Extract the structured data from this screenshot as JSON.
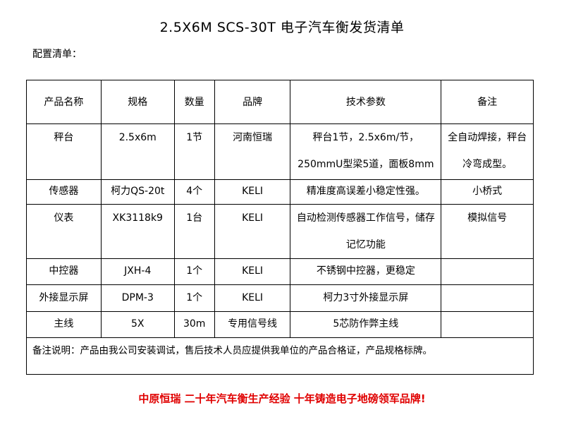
{
  "title": "2.5X6M SCS-30T 电子汽车衡发货清单",
  "subtitle": "配置清单：",
  "headers": [
    "产品名称",
    "规格",
    "数量",
    "品牌",
    "技术参数",
    "备注"
  ],
  "rows": [
    [
      "秤台",
      "2.5x6m",
      "1节",
      "河南恒瑞",
      "秤台1节，2.5x6m/节，250mmU型梁5道，面板8mm",
      "全自动焊接，秤台冷弯成型。"
    ],
    [
      "传感器",
      "柯力QS-20t",
      "4个",
      "KELI",
      "精准度高误差小稳定性强。",
      "小桥式"
    ],
    [
      "仪表",
      "XK3118k9",
      "1台",
      "KELI",
      "自动检测传感器工作信号，储存记忆功能",
      "模拟信号"
    ],
    [
      "中控器",
      "JXH-4",
      "1个",
      "KELI",
      "不锈钢中控器，更稳定",
      ""
    ],
    [
      "外接显示屏",
      "DPM-3",
      "1个",
      "KELI",
      "柯力3寸外接显示屏",
      ""
    ],
    [
      "主线",
      "5X",
      "30m",
      "专用信号线",
      "5芯防作弊主线",
      ""
    ]
  ],
  "note": "备注说明：产品由我公司安装调试，售后技术人员应提供我单位的产品合格证，产品规格标牌。",
  "footer": "中原恒瑞 二十年汽车衡生产经验 十年铸造电子地磅领军品牌!",
  "colors": {
    "footer": "#e00000"
  }
}
